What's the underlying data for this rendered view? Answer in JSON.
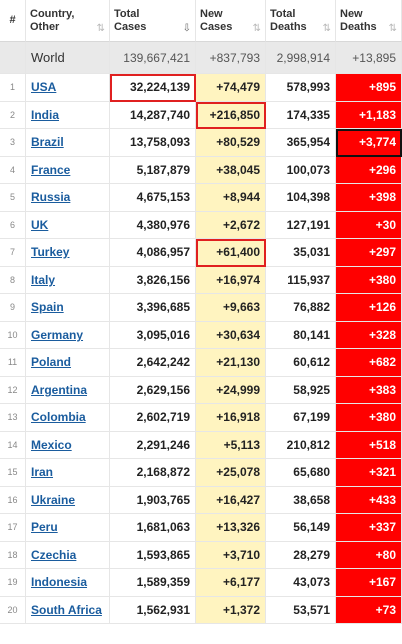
{
  "headers": {
    "num": "#",
    "country": [
      "Country,",
      "Other"
    ],
    "total_cases": [
      "Total",
      "Cases"
    ],
    "new_cases": [
      "New",
      "Cases"
    ],
    "total_deaths": [
      "Total",
      "Deaths"
    ],
    "new_deaths": [
      "New",
      "Deaths"
    ],
    "sort_glyph": "⇅",
    "sort_active_glyph": "⇩"
  },
  "world": {
    "country": "World",
    "total_cases": "139,667,421",
    "new_cases": "+837,793",
    "total_deaths": "2,998,914",
    "new_deaths": "+13,895"
  },
  "rows": [
    {
      "num": "1",
      "country": "USA",
      "total_cases": "32,224,139",
      "new_cases": "+74,479",
      "total_deaths": "578,993",
      "new_deaths": "+895"
    },
    {
      "num": "2",
      "country": "India",
      "total_cases": "14,287,740",
      "new_cases": "+216,850",
      "total_deaths": "174,335",
      "new_deaths": "+1,183"
    },
    {
      "num": "3",
      "country": "Brazil",
      "total_cases": "13,758,093",
      "new_cases": "+80,529",
      "total_deaths": "365,954",
      "new_deaths": "+3,774"
    },
    {
      "num": "4",
      "country": "France",
      "total_cases": "5,187,879",
      "new_cases": "+38,045",
      "total_deaths": "100,073",
      "new_deaths": "+296"
    },
    {
      "num": "5",
      "country": "Russia",
      "total_cases": "4,675,153",
      "new_cases": "+8,944",
      "total_deaths": "104,398",
      "new_deaths": "+398"
    },
    {
      "num": "6",
      "country": "UK",
      "total_cases": "4,380,976",
      "new_cases": "+2,672",
      "total_deaths": "127,191",
      "new_deaths": "+30"
    },
    {
      "num": "7",
      "country": "Turkey",
      "total_cases": "4,086,957",
      "new_cases": "+61,400",
      "total_deaths": "35,031",
      "new_deaths": "+297"
    },
    {
      "num": "8",
      "country": "Italy",
      "total_cases": "3,826,156",
      "new_cases": "+16,974",
      "total_deaths": "115,937",
      "new_deaths": "+380"
    },
    {
      "num": "9",
      "country": "Spain",
      "total_cases": "3,396,685",
      "new_cases": "+9,663",
      "total_deaths": "76,882",
      "new_deaths": "+126"
    },
    {
      "num": "10",
      "country": "Germany",
      "total_cases": "3,095,016",
      "new_cases": "+30,634",
      "total_deaths": "80,141",
      "new_deaths": "+328"
    },
    {
      "num": "11",
      "country": "Poland",
      "total_cases": "2,642,242",
      "new_cases": "+21,130",
      "total_deaths": "60,612",
      "new_deaths": "+682"
    },
    {
      "num": "12",
      "country": "Argentina",
      "total_cases": "2,629,156",
      "new_cases": "+24,999",
      "total_deaths": "58,925",
      "new_deaths": "+383"
    },
    {
      "num": "13",
      "country": "Colombia",
      "total_cases": "2,602,719",
      "new_cases": "+16,918",
      "total_deaths": "67,199",
      "new_deaths": "+380"
    },
    {
      "num": "14",
      "country": "Mexico",
      "total_cases": "2,291,246",
      "new_cases": "+5,113",
      "total_deaths": "210,812",
      "new_deaths": "+518"
    },
    {
      "num": "15",
      "country": "Iran",
      "total_cases": "2,168,872",
      "new_cases": "+25,078",
      "total_deaths": "65,680",
      "new_deaths": "+321"
    },
    {
      "num": "16",
      "country": "Ukraine",
      "total_cases": "1,903,765",
      "new_cases": "+16,427",
      "total_deaths": "38,658",
      "new_deaths": "+433"
    },
    {
      "num": "17",
      "country": "Peru",
      "total_cases": "1,681,063",
      "new_cases": "+13,326",
      "total_deaths": "56,149",
      "new_deaths": "+337"
    },
    {
      "num": "18",
      "country": "Czechia",
      "total_cases": "1,593,865",
      "new_cases": "+3,710",
      "total_deaths": "28,279",
      "new_deaths": "+80"
    },
    {
      "num": "19",
      "country": "Indonesia",
      "total_cases": "1,589,359",
      "new_cases": "+6,177",
      "total_deaths": "43,073",
      "new_deaths": "+167"
    },
    {
      "num": "20",
      "country": "South Africa",
      "total_cases": "1,562,931",
      "new_cases": "+1,372",
      "total_deaths": "53,571",
      "new_deaths": "+73"
    }
  ],
  "highlights": {
    "red": [
      [
        "1",
        "total_cases"
      ],
      [
        "2",
        "new_cases"
      ],
      [
        "7",
        "new_cases"
      ]
    ],
    "black": [
      [
        "3",
        "new_deaths"
      ]
    ]
  },
  "colors": {
    "new_cases_bg": "#fff4c0",
    "new_deaths_bg": "#ff0000",
    "world_bg": "#e9e9e9",
    "link": "#1a5c9e",
    "highlight_red": "#e02020",
    "highlight_black": "#111111"
  }
}
